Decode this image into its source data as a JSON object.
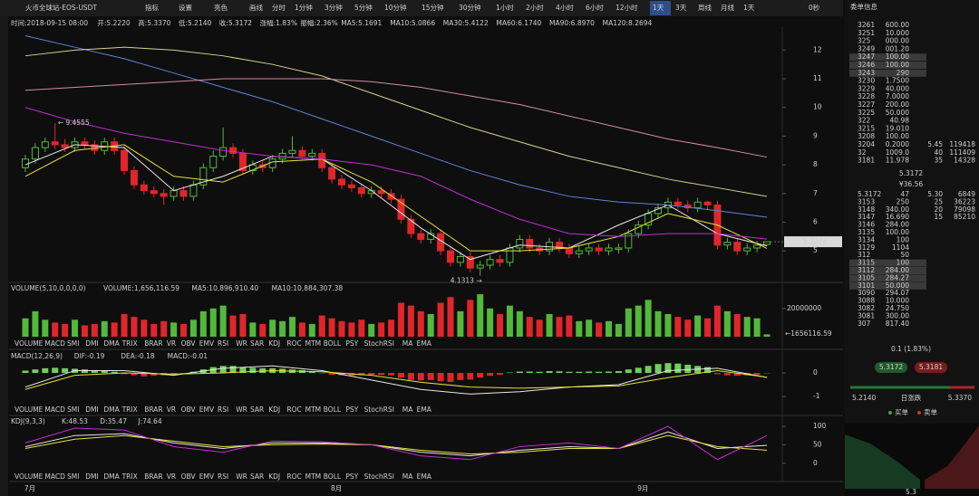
{
  "toolbar": {
    "title": "火币全球站-EOS-USDT",
    "buttons": [
      "指标",
      "设置",
      "亮色",
      "画线"
    ],
    "intervals": [
      "分时",
      "1分钟",
      "3分钟",
      "5分钟",
      "10分钟",
      "15分钟",
      "30分钟",
      "1小时",
      "2小时",
      "4小时",
      "6小时",
      "12小时",
      "1天",
      "3天",
      "周线",
      "月线",
      "1天"
    ],
    "timer": "0秒"
  },
  "info": [
    "时间:2018-09-15 08:00",
    "开:5.2220",
    "高:5.3370",
    "低:5.2140",
    "收:5.3172",
    "涨幅:1.83%",
    "振幅:2.36%",
    "MA5:5.1691",
    "MA10:5.0866",
    "MA30:5.4122",
    "MA60:6.1740",
    "MA90:6.8970",
    "MA120:8.2694"
  ],
  "main": {
    "ylim": [
      3.9,
      12.8
    ],
    "yticks": [
      5,
      6,
      7,
      8,
      9,
      10,
      11,
      12
    ],
    "up_color": "#52b93a",
    "down_color": "#e0262a",
    "candles": [
      [
        7.9,
        8.35,
        7.75,
        8.2
      ],
      [
        8.2,
        8.75,
        8.05,
        8.6
      ],
      [
        8.6,
        8.95,
        8.45,
        8.8
      ],
      [
        8.8,
        9.4555,
        8.55,
        8.7
      ],
      [
        8.7,
        8.9,
        8.45,
        8.6
      ],
      [
        8.6,
        8.95,
        8.45,
        8.8
      ],
      [
        8.8,
        8.95,
        8.55,
        8.7
      ],
      [
        8.7,
        8.85,
        8.35,
        8.5
      ],
      [
        8.5,
        8.95,
        8.35,
        8.8
      ],
      [
        8.8,
        8.95,
        8.35,
        8.5
      ],
      [
        8.5,
        8.65,
        7.65,
        7.8
      ],
      [
        7.8,
        7.95,
        7.15,
        7.3
      ],
      [
        7.3,
        7.45,
        6.95,
        7.1
      ],
      [
        7.1,
        7.25,
        6.85,
        7.0
      ],
      [
        7.0,
        7.15,
        6.6,
        6.9
      ],
      [
        6.9,
        7.25,
        6.75,
        7.1
      ],
      [
        7.1,
        7.25,
        6.75,
        6.9
      ],
      [
        6.9,
        7.45,
        6.75,
        7.3
      ],
      [
        7.3,
        8.05,
        7.15,
        7.9
      ],
      [
        7.9,
        8.5,
        7.75,
        8.3
      ],
      [
        8.3,
        9.3,
        8.15,
        8.6
      ],
      [
        8.6,
        8.75,
        8.25,
        8.4
      ],
      [
        8.4,
        8.55,
        7.65,
        7.8
      ],
      [
        7.8,
        8.15,
        7.65,
        8.0
      ],
      [
        8.0,
        8.15,
        7.75,
        7.9
      ],
      [
        7.9,
        8.35,
        7.75,
        8.2
      ],
      [
        8.2,
        8.55,
        8.05,
        8.4
      ],
      [
        8.4,
        9.0,
        8.25,
        8.5
      ],
      [
        8.5,
        8.65,
        8.15,
        8.3
      ],
      [
        8.3,
        8.55,
        8.15,
        8.4
      ],
      [
        8.4,
        8.55,
        7.75,
        7.9
      ],
      [
        7.9,
        8.05,
        7.35,
        7.5
      ],
      [
        7.5,
        7.65,
        7.15,
        7.3
      ],
      [
        7.3,
        7.45,
        7.05,
        7.2
      ],
      [
        7.2,
        7.35,
        6.85,
        7.0
      ],
      [
        7.0,
        7.25,
        6.85,
        7.1
      ],
      [
        7.1,
        7.25,
        6.85,
        7.0
      ],
      [
        7.0,
        7.15,
        6.65,
        6.8
      ],
      [
        6.8,
        6.95,
        5.95,
        6.1
      ],
      [
        6.1,
        6.25,
        5.45,
        5.6
      ],
      [
        5.6,
        5.75,
        5.25,
        5.4
      ],
      [
        5.4,
        5.75,
        5.25,
        5.6
      ],
      [
        5.6,
        5.75,
        4.85,
        5.0
      ],
      [
        5.0,
        5.15,
        4.45,
        4.6
      ],
      [
        4.6,
        4.95,
        4.45,
        4.8
      ],
      [
        4.8,
        4.95,
        4.25,
        4.4
      ],
      [
        4.4,
        4.65,
        4.1313,
        4.5
      ],
      [
        4.5,
        4.85,
        4.35,
        4.7
      ],
      [
        4.7,
        4.85,
        4.45,
        4.6
      ],
      [
        4.6,
        5.25,
        4.45,
        5.1
      ],
      [
        5.1,
        5.55,
        4.95,
        5.4
      ],
      [
        5.4,
        5.55,
        4.95,
        5.1
      ],
      [
        5.1,
        5.25,
        4.85,
        5.0
      ],
      [
        5.0,
        5.45,
        4.85,
        5.3
      ],
      [
        5.3,
        5.45,
        4.95,
        5.1
      ],
      [
        5.1,
        5.25,
        4.75,
        4.9
      ],
      [
        4.9,
        5.15,
        4.75,
        5.0
      ],
      [
        5.0,
        5.25,
        4.85,
        5.1
      ],
      [
        5.1,
        5.25,
        4.85,
        5.0
      ],
      [
        5.0,
        5.25,
        4.85,
        5.1
      ],
      [
        5.05,
        5.25,
        4.9,
        5.1
      ],
      [
        5.1,
        5.75,
        4.95,
        5.6
      ],
      [
        5.6,
        6.05,
        5.45,
        5.9
      ],
      [
        5.9,
        6.45,
        5.75,
        6.3
      ],
      [
        6.3,
        6.65,
        6.15,
        6.5
      ],
      [
        6.5,
        6.85,
        6.35,
        6.7
      ],
      [
        6.7,
        6.85,
        6.45,
        6.6
      ],
      [
        6.6,
        6.75,
        6.35,
        6.5
      ],
      [
        6.5,
        6.85,
        6.35,
        6.7
      ],
      [
        6.7,
        6.75,
        6.45,
        6.6
      ],
      [
        6.6,
        6.75,
        5.05,
        5.2
      ],
      [
        5.2,
        5.45,
        5.05,
        5.3
      ],
      [
        5.3,
        5.45,
        4.85,
        5.0
      ],
      [
        5.0,
        5.25,
        4.85,
        5.1
      ],
      [
        5.1,
        5.35,
        4.95,
        5.2
      ],
      [
        5.222,
        5.337,
        5.214,
        5.3172
      ]
    ],
    "ma": [
      {
        "name": "MA5",
        "color": "#e8e8e8",
        "values": [
          8.0,
          8.7,
          8.6,
          7.1,
          7.6,
          8.3,
          8.2,
          7.1,
          5.8,
          4.7,
          5.2,
          5.1,
          5.9,
          6.6,
          5.6,
          5.1691
        ]
      },
      {
        "name": "MA10",
        "color": "#e8e23a",
        "values": [
          7.6,
          8.5,
          8.7,
          7.6,
          7.4,
          8.1,
          8.2,
          7.4,
          6.2,
          5.0,
          5.0,
          5.1,
          5.5,
          6.3,
          5.9,
          5.0866
        ]
      },
      {
        "name": "MA30",
        "color": "#c22fd0",
        "values": [
          10.0,
          9.5,
          9.1,
          8.8,
          8.5,
          8.3,
          8.2,
          8.0,
          7.6,
          6.8,
          6.1,
          5.6,
          5.5,
          5.6,
          5.6,
          5.4122
        ]
      },
      {
        "name": "MA60",
        "color": "#5b86d6",
        "values": [
          12.5,
          12.1,
          11.7,
          11.2,
          10.7,
          10.2,
          9.6,
          9.0,
          8.4,
          7.8,
          7.3,
          6.9,
          6.7,
          6.6,
          6.4,
          6.174
        ]
      },
      {
        "name": "MA90",
        "color": "#d8d28a",
        "values": [
          11.8,
          12.0,
          12.1,
          12.0,
          11.8,
          11.5,
          11.1,
          10.5,
          9.9,
          9.3,
          8.8,
          8.3,
          7.9,
          7.5,
          7.2,
          6.897
        ]
      },
      {
        "name": "MA120",
        "color": "#d58ca0",
        "values": [
          10.6,
          10.7,
          10.8,
          10.9,
          11.0,
          11.0,
          11.0,
          10.9,
          10.7,
          10.4,
          10.1,
          9.7,
          9.3,
          8.9,
          8.6,
          8.2694
        ]
      }
    ],
    "high_label": "← 9.4555",
    "low_label": "4.1313 →",
    "price_tag": "5.3172"
  },
  "volume": {
    "header": [
      "VOLUME(5,10,0,0,0,0)",
      "VOLUME:1,656,116.59",
      "MA5:10,896,910.40",
      "MA10:10,884,307.38"
    ],
    "ylim": [
      0,
      32000000
    ],
    "yticks": [
      20000000
    ],
    "last_label": "←1656116.59",
    "values": [
      13000000,
      18000000,
      12000000,
      10000000,
      9000000,
      12000000,
      8000000,
      9000000,
      11000000,
      10000000,
      16000000,
      14000000,
      12000000,
      9000000,
      11000000,
      10000000,
      9000000,
      12000000,
      18000000,
      20000000,
      22000000,
      15000000,
      16000000,
      10000000,
      9000000,
      12000000,
      11000000,
      14000000,
      10000000,
      9000000,
      15000000,
      13000000,
      11000000,
      10000000,
      12000000,
      9000000,
      10000000,
      12000000,
      24000000,
      22000000,
      18000000,
      16000000,
      24000000,
      28000000,
      18000000,
      26000000,
      30000000,
      20000000,
      16000000,
      22000000,
      18000000,
      14000000,
      12000000,
      16000000,
      14000000,
      15000000,
      11000000,
      12000000,
      10000000,
      11000000,
      9000000,
      20000000,
      22000000,
      26000000,
      18000000,
      16000000,
      14000000,
      12000000,
      15000000,
      13000000,
      22000000,
      18000000,
      16000000,
      14000000,
      13000000,
      1656116.59
    ]
  },
  "tabs": [
    "VOLUME",
    "MACD",
    "SMI",
    "DMI",
    "DMA",
    "TRIX",
    "BRAR",
    "VR",
    "OBV",
    "EMV",
    "RSI",
    "WR",
    "SAR",
    "KDJ",
    "ROC",
    "MTM",
    "BOLL",
    "PSY",
    "StochRSI",
    "MA",
    "EMA"
  ],
  "macd": {
    "header": [
      "MACD(12,26,9)",
      "DIF:-0.19",
      "DEA:-0.18",
      "MACD:-0.01"
    ],
    "ylim": [
      -1.27,
      0.85
    ],
    "yticks": [
      0,
      -1
    ],
    "hist": [
      0.1,
      0.15,
      0.2,
      0.22,
      0.2,
      0.18,
      0.15,
      0.12,
      0.1,
      0.05,
      -0.05,
      -0.1,
      -0.15,
      -0.12,
      -0.1,
      -0.05,
      -0.02,
      0.05,
      0.15,
      0.25,
      0.3,
      0.3,
      0.25,
      0.22,
      0.2,
      0.2,
      0.18,
      0.15,
      0.12,
      0.08,
      -0.02,
      -0.08,
      -0.1,
      -0.12,
      -0.1,
      -0.08,
      -0.08,
      -0.1,
      -0.2,
      -0.3,
      -0.32,
      -0.3,
      -0.35,
      -0.38,
      -0.3,
      -0.28,
      -0.2,
      -0.12,
      -0.08,
      0.02,
      0.06,
      0.06,
      0.05,
      0.08,
      0.07,
      0.05,
      0.05,
      0.06,
      0.05,
      0.06,
      0.08,
      0.15,
      0.22,
      0.3,
      0.38,
      0.42,
      0.4,
      0.35,
      0.3,
      0.25,
      -0.05,
      -0.1,
      -0.12,
      -0.1,
      -0.08,
      -0.01
    ],
    "lines": [
      {
        "name": "DIF",
        "color": "#e8e8e8",
        "values": [
          -0.6,
          0.1,
          0.1,
          -0.1,
          0.2,
          0.3,
          0.1,
          -0.3,
          -0.7,
          -0.9,
          -0.8,
          -0.6,
          -0.5,
          0.1,
          0.2,
          -0.19
        ]
      },
      {
        "name": "DEA",
        "color": "#e8e23a",
        "values": [
          -0.7,
          -0.1,
          0.0,
          -0.05,
          0.0,
          0.1,
          0.05,
          -0.1,
          -0.4,
          -0.6,
          -0.65,
          -0.6,
          -0.55,
          -0.2,
          0.1,
          -0.18
        ]
      }
    ]
  },
  "kdj": {
    "header": [
      "KDJ(9,3,3)",
      "K:48.53",
      "D:35.47",
      "J:74.64"
    ],
    "ylim": [
      -20,
      122
    ],
    "yticks": [
      0,
      50,
      100
    ],
    "lines": [
      {
        "name": "K",
        "color": "#e8e8e8",
        "values": [
          45,
          75,
          80,
          55,
          40,
          55,
          55,
          50,
          30,
          20,
          35,
          45,
          40,
          85,
          40,
          48.53
        ]
      },
      {
        "name": "D",
        "color": "#e8e23a",
        "values": [
          40,
          65,
          75,
          60,
          45,
          50,
          52,
          50,
          35,
          25,
          30,
          40,
          40,
          75,
          45,
          35.47
        ]
      },
      {
        "name": "J",
        "color": "#c22fd0",
        "values": [
          55,
          95,
          90,
          45,
          30,
          60,
          58,
          50,
          20,
          10,
          45,
          55,
          40,
          100,
          10,
          74.64
        ]
      }
    ]
  },
  "months": [
    "7月",
    "8月",
    "9月"
  ],
  "orderbook": {
    "title": "委单信息",
    "asks": [
      [
        "3261",
        "600.00"
      ],
      [
        "3251",
        "10.000"
      ],
      [
        "325",
        "000.00"
      ],
      [
        "3249",
        "001.20"
      ],
      [
        "3247",
        "100.00"
      ],
      [
        "3246",
        "100.00"
      ],
      [
        "3243",
        "290"
      ],
      [
        "3230",
        "1.7500"
      ],
      [
        "3229",
        "40.000"
      ],
      [
        "3228",
        "7.0000"
      ],
      [
        "3227",
        "200.00"
      ],
      [
        "3225",
        "50.000"
      ],
      [
        "322",
        "40.98"
      ],
      [
        "3215",
        "19.010"
      ],
      [
        "3208",
        "100.00"
      ],
      [
        "3204",
        "0.2000",
        "5.45",
        "119418"
      ],
      [
        "32",
        "1009.0",
        "40",
        "111409"
      ],
      [
        "3181",
        "11.978",
        "35",
        "14328"
      ]
    ],
    "last_price": "5.3172",
    "cny": "¥36.56",
    "bids": [
      [
        "5.3172",
        "47",
        "5.30",
        "6849"
      ],
      [
        "3153",
        "250",
        "25",
        "36223"
      ],
      [
        "3148",
        "340.00",
        "20",
        "79098"
      ],
      [
        "3147",
        "16.690",
        "15",
        "85210"
      ],
      [
        "3146",
        "284.00"
      ],
      [
        "3135",
        "100.00"
      ],
      [
        "3134",
        "100"
      ],
      [
        "3129",
        "1104"
      ],
      [
        "312",
        "50"
      ],
      [
        "3115",
        "100"
      ],
      [
        "3112",
        "284.00"
      ],
      [
        "3105",
        "284.27"
      ],
      [
        "3101",
        "50.000"
      ],
      [
        "3090",
        "294.07"
      ],
      [
        "3088",
        "10.000"
      ],
      [
        "3082",
        "24.750"
      ],
      [
        "3081",
        "300.00"
      ],
      [
        "307",
        "817.40"
      ]
    ],
    "change": "0.1 (1.83%)",
    "buy_price": "5.3172",
    "sell_price": "5.3181",
    "low": "5.2140",
    "range_label": "日涨跌",
    "high": "5.3370",
    "buy_label": "买单",
    "sell_label": "卖单",
    "depth_price": "5.3"
  }
}
